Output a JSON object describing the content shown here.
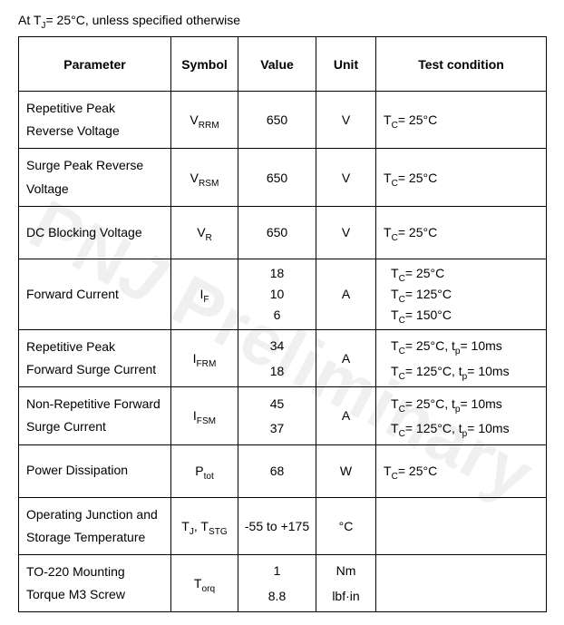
{
  "note_prefix": "At T",
  "note_sub": "J",
  "note_suffix": "= 25°C, unless specified otherwise",
  "watermark_prefix": "PN",
  "watermark_suffix": " Preliminary",
  "headers": {
    "parameter": "Parameter",
    "symbol": "Symbol",
    "value": "Value",
    "unit": "Unit",
    "condition": "Test condition"
  },
  "rows": [
    {
      "param": "Repetitive Peak Reverse Voltage",
      "sym_main": "V",
      "sym_sub": "RRM",
      "values": [
        "650"
      ],
      "unit": "V",
      "conds": [
        {
          "pre": "T",
          "sub": "C",
          "post": "= 25°C"
        }
      ]
    },
    {
      "param": "Surge Peak Reverse Voltage",
      "sym_main": "V",
      "sym_sub": "RSM",
      "values": [
        "650"
      ],
      "unit": "V",
      "conds": [
        {
          "pre": "T",
          "sub": "C",
          "post": "= 25°C"
        }
      ]
    },
    {
      "param": "DC Blocking Voltage",
      "sym_main": "V",
      "sym_sub": "R",
      "values": [
        "650"
      ],
      "unit": "V",
      "conds": [
        {
          "pre": "T",
          "sub": "C",
          "post": "= 25°C"
        }
      ]
    },
    {
      "param": "Forward Current",
      "sym_main": "I",
      "sym_sub": "F",
      "values": [
        "18",
        "10",
        "6"
      ],
      "unit": "A",
      "conds": [
        {
          "pre": "T",
          "sub": "C",
          "post": "= 25°C"
        },
        {
          "pre": "T",
          "sub": "C",
          "post": "= 125°C"
        },
        {
          "pre": "T",
          "sub": "C",
          "post": "= 150°C"
        }
      ]
    },
    {
      "param": "Repetitive Peak Forward Surge Current",
      "sym_main": "I",
      "sym_sub": "FRM",
      "values": [
        "34",
        "18"
      ],
      "unit": "A",
      "conds": [
        {
          "pre": "T",
          "sub": "C",
          "post": "= 25°C, t",
          "sub2": "p",
          "post2": "= 10ms"
        },
        {
          "pre": "T",
          "sub": "C",
          "post": "= 125°C, t",
          "sub2": "p",
          "post2": "= 10ms"
        }
      ]
    },
    {
      "param": "Non-Repetitive Forward Surge Current",
      "sym_main": "I",
      "sym_sub": "FSM",
      "values": [
        "45",
        "37"
      ],
      "unit": "A",
      "conds": [
        {
          "pre": "T",
          "sub": "C",
          "post": "= 25°C, t",
          "sub2": "p",
          "post2": "= 10ms"
        },
        {
          "pre": "T",
          "sub": "C",
          "post": "= 125°C, t",
          "sub2": "p",
          "post2": "= 10ms"
        }
      ]
    },
    {
      "param": "Power Dissipation",
      "sym_main": "P",
      "sym_sub": "tot",
      "values": [
        "68"
      ],
      "unit": "W",
      "conds": [
        {
          "pre": "T",
          "sub": "C",
          "post": "= 25°C"
        }
      ]
    },
    {
      "param": "Operating Junction and Storage Temperature",
      "sym_compound": [
        {
          "m": "T",
          "s": "J"
        },
        {
          "m": ", T",
          "s": "STG"
        }
      ],
      "values": [
        "-55 to +175"
      ],
      "unit": "°C",
      "conds": []
    },
    {
      "param": "TO-220 Mounting Torque M3 Screw",
      "sym_main": "T",
      "sym_sub": "orq",
      "values": [
        "1",
        "8.8"
      ],
      "units": [
        "Nm",
        "lbf·in"
      ],
      "conds": []
    }
  ]
}
